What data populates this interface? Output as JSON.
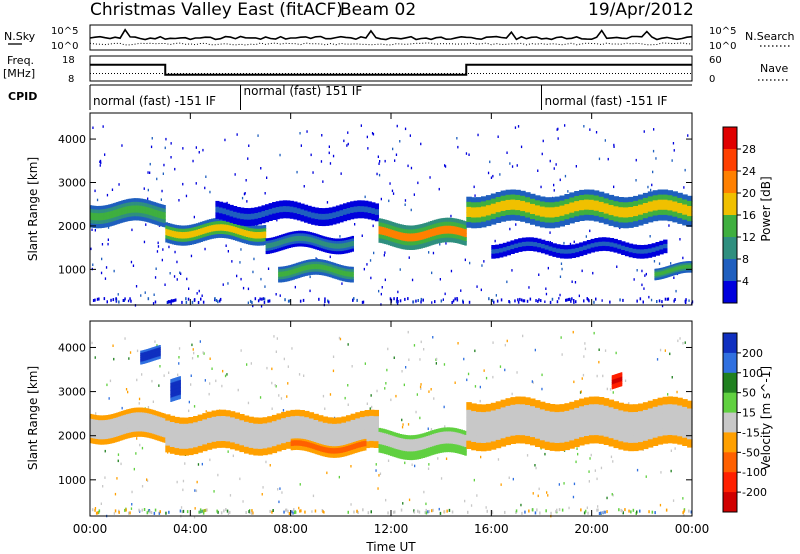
{
  "header": {
    "station": "Christmas Valley East (fitACF)",
    "beam": "Beam 02",
    "date": "19/Apr/2012"
  },
  "top_panels": {
    "noise": {
      "left_label": "N.Sky",
      "right_label": "N.Search",
      "left_ticks": [
        "10^5",
        "10^0"
      ],
      "right_ticks": [
        "10^5",
        "10^0"
      ]
    },
    "freq": {
      "left_label_1": "Freq.",
      "left_label_2": "[MHz]",
      "right_label": "Nave",
      "left_ticks": [
        "18",
        "8"
      ],
      "right_ticks": [
        "60",
        "0"
      ]
    },
    "cpid": {
      "label": "CPID",
      "segments": [
        {
          "text": "normal (fast) -151 IF",
          "start_hour": 0,
          "end_hour": 6
        },
        {
          "text": "normal (fast) 151 IF",
          "start_hour": 6,
          "end_hour": 18
        },
        {
          "text": "normal (fast) -151 IF",
          "start_hour": 18,
          "end_hour": 24
        }
      ]
    }
  },
  "x_axis": {
    "label": "Time UT",
    "ticks": [
      "00:00",
      "04:00",
      "08:00",
      "12:00",
      "16:00",
      "20:00",
      "00:00"
    ]
  },
  "power_panel": {
    "ylabel": "Slant Range [km]",
    "yticks": [
      "4000",
      "3000",
      "2000",
      "1000"
    ],
    "colorbar_label": "Power [dB]",
    "colorbar_ticks": [
      "28",
      "24",
      "20",
      "16",
      "12",
      "8",
      "4"
    ],
    "colors": [
      "#0000dd",
      "#1f5fbf",
      "#2f8f7f",
      "#3faf3f",
      "#f0c000",
      "#ff8000",
      "#ff4000",
      "#e00000"
    ]
  },
  "velocity_panel": {
    "ylabel": "Slant Range [km]",
    "yticks": [
      "4000",
      "3000",
      "2000",
      "1000"
    ],
    "colorbar_label": "Velocity [m s^-1]",
    "colorbar_ticks": [
      "200",
      "100",
      "50",
      "15",
      "-15",
      "-50",
      "-100",
      "-200"
    ],
    "colors": [
      "#1030c0",
      "#3070e0",
      "#208020",
      "#60d040",
      "#c8c8c8",
      "#ffa000",
      "#ff6000",
      "#ff2000",
      "#d00000"
    ]
  },
  "chart_data": {
    "type": "heatmap",
    "title": "Christmas Valley East (fitACF) Beam 02 19/Apr/2012",
    "xlabel": "Time UT",
    "ylabel": "Slant Range [km]",
    "xlim_hours": [
      0,
      24
    ],
    "ylim_km": [
      180,
      4600
    ],
    "frequency_mhz": [
      {
        "start_hour": 0,
        "end_hour": 3,
        "value": 14.5
      },
      {
        "start_hour": 3,
        "end_hour": 15,
        "value": 10.5
      },
      {
        "start_hour": 15,
        "end_hour": 24,
        "value": 14.5
      }
    ],
    "nave": [
      {
        "start_hour": 0,
        "end_hour": 24,
        "value": 18
      }
    ],
    "power_bands": [
      {
        "t0": 0,
        "t1": 3,
        "r0": 2050,
        "r1": 2550,
        "level": 16
      },
      {
        "t0": 3,
        "t1": 7,
        "r0": 1650,
        "r1": 2100,
        "level": 20
      },
      {
        "t0": 5,
        "t1": 11.5,
        "r0": 2100,
        "r1": 2500,
        "level": 8
      },
      {
        "t0": 7,
        "t1": 10.5,
        "r0": 1450,
        "r1": 1800,
        "level": 12
      },
      {
        "t0": 7.5,
        "t1": 10.5,
        "r0": 800,
        "r1": 1150,
        "level": 16
      },
      {
        "t0": 11.5,
        "t1": 15,
        "r0": 1550,
        "r1": 2100,
        "level": 24
      },
      {
        "t0": 15,
        "t1": 24,
        "r0": 2050,
        "r1": 2750,
        "level": 20
      },
      {
        "t0": 16,
        "t1": 23,
        "r0": 1350,
        "r1": 1650,
        "level": 8
      },
      {
        "t0": 22.5,
        "t1": 24,
        "r0": 850,
        "r1": 1100,
        "level": 16
      }
    ],
    "velocity_bands": [
      {
        "t0": 0,
        "t1": 3,
        "r0": 1900,
        "r1": 2550,
        "value": 0
      },
      {
        "t0": 3,
        "t1": 11.5,
        "r0": 1650,
        "r1": 2500,
        "value": 0
      },
      {
        "t0": 3.2,
        "t1": 3.6,
        "r0": 2800,
        "r1": 3300,
        "value": 200
      },
      {
        "t0": 2,
        "t1": 2.8,
        "r0": 3700,
        "r1": 4000,
        "value": 150
      },
      {
        "t0": 8,
        "t1": 11,
        "r0": 1600,
        "r1": 1850,
        "value": -60
      },
      {
        "t0": 11.5,
        "t1": 15,
        "r0": 1550,
        "r1": 2100,
        "value": 30
      },
      {
        "t0": 15,
        "t1": 24,
        "r0": 1750,
        "r1": 2800,
        "value": 0
      },
      {
        "t0": 20.8,
        "t1": 21.2,
        "r0": 3100,
        "r1": 3400,
        "value": -200
      }
    ]
  }
}
